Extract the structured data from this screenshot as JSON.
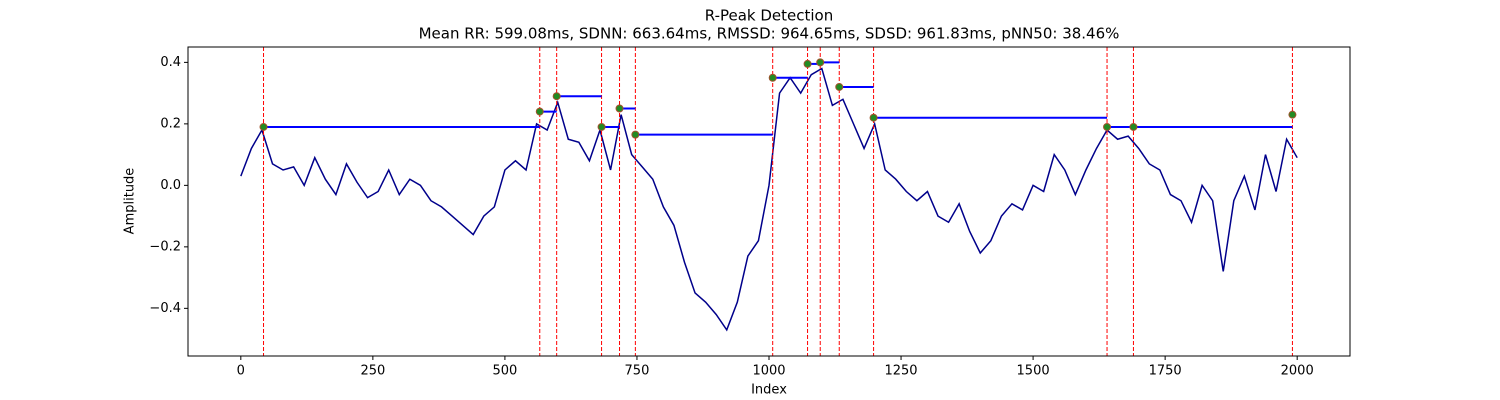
{
  "chart_data": {
    "type": "line",
    "title": "R-Peak Detection",
    "subtitle": "Mean RR: 599.08ms, SDNN: 663.64ms, RMSSD: 964.65ms, SDSD: 961.83ms, pNN50: 38.46%",
    "x_label": "Index",
    "y_label": "Amplitude",
    "xlim": [
      -100,
      2100
    ],
    "ylim": [
      -0.555,
      0.45
    ],
    "xticks": [
      0,
      250,
      500,
      750,
      1000,
      1250,
      1500,
      1750,
      2000
    ],
    "yticks": [
      {
        "value": -0.4,
        "label": "−0.4"
      },
      {
        "value": -0.2,
        "label": "−0.2"
      },
      {
        "value": 0,
        "label": "0.0"
      },
      0.2,
      0.4
    ],
    "x": [
      0,
      20,
      40,
      60,
      80,
      100,
      120,
      140,
      160,
      180,
      200,
      220,
      240,
      260,
      280,
      300,
      320,
      340,
      360,
      380,
      400,
      420,
      440,
      460,
      480,
      500,
      520,
      540,
      560,
      580,
      600,
      620,
      640,
      660,
      680,
      700,
      720,
      740,
      760,
      780,
      800,
      820,
      840,
      860,
      880,
      900,
      920,
      940,
      960,
      980,
      1000,
      1020,
      1040,
      1060,
      1080,
      1100,
      1120,
      1140,
      1160,
      1180,
      1200,
      1220,
      1240,
      1260,
      1280,
      1300,
      1320,
      1340,
      1360,
      1380,
      1400,
      1420,
      1440,
      1460,
      1480,
      1500,
      1520,
      1540,
      1560,
      1580,
      1600,
      1620,
      1640,
      1660,
      1680,
      1700,
      1720,
      1740,
      1760,
      1780,
      1800,
      1820,
      1840,
      1860,
      1880,
      1900,
      1920,
      1940,
      1960,
      1980,
      2000
    ],
    "series": [
      {
        "color": "#00008b",
        "values": [
          0.03,
          0.12,
          0.18,
          0.07,
          0.05,
          0.06,
          0.0,
          0.09,
          0.02,
          -0.03,
          0.07,
          0.01,
          -0.04,
          -0.02,
          0.05,
          -0.03,
          0.02,
          0.0,
          -0.05,
          -0.07,
          -0.1,
          -0.13,
          -0.16,
          -0.1,
          -0.07,
          0.05,
          0.08,
          0.05,
          0.2,
          0.18,
          0.27,
          0.15,
          0.14,
          0.08,
          0.18,
          0.05,
          0.23,
          0.1,
          0.06,
          0.02,
          -0.07,
          -0.13,
          -0.25,
          -0.35,
          -0.38,
          -0.42,
          -0.47,
          -0.38,
          -0.23,
          -0.18,
          0.0,
          0.3,
          0.35,
          0.3,
          0.36,
          0.38,
          0.26,
          0.28,
          0.2,
          0.12,
          0.2,
          0.05,
          0.02,
          -0.02,
          -0.05,
          -0.02,
          -0.1,
          -0.12,
          -0.06,
          -0.15,
          -0.22,
          -0.18,
          -0.1,
          -0.06,
          -0.08,
          0.0,
          -0.02,
          0.1,
          0.05,
          -0.03,
          0.05,
          0.12,
          0.18,
          0.15,
          0.16,
          0.12,
          0.07,
          0.05,
          -0.03,
          -0.05,
          -0.12,
          0.0,
          -0.05,
          -0.28,
          -0.05,
          0.03,
          -0.08,
          0.1,
          -0.02,
          0.15,
          0.09
        ]
      }
    ],
    "peaks": {
      "x": [
        43,
        566,
        598,
        683,
        717,
        747,
        1007,
        1073,
        1097,
        1133,
        1198,
        1640,
        1690,
        1991
      ],
      "values": [
        0.19,
        0.24,
        0.29,
        0.19,
        0.25,
        0.165,
        0.35,
        0.395,
        0.4,
        0.32,
        0.22,
        0.19,
        0.19,
        0.23
      ],
      "color": "#228b22",
      "edge_color": "#a0522d",
      "line_color": "#ff0000",
      "level_color": "#0000ff"
    }
  }
}
